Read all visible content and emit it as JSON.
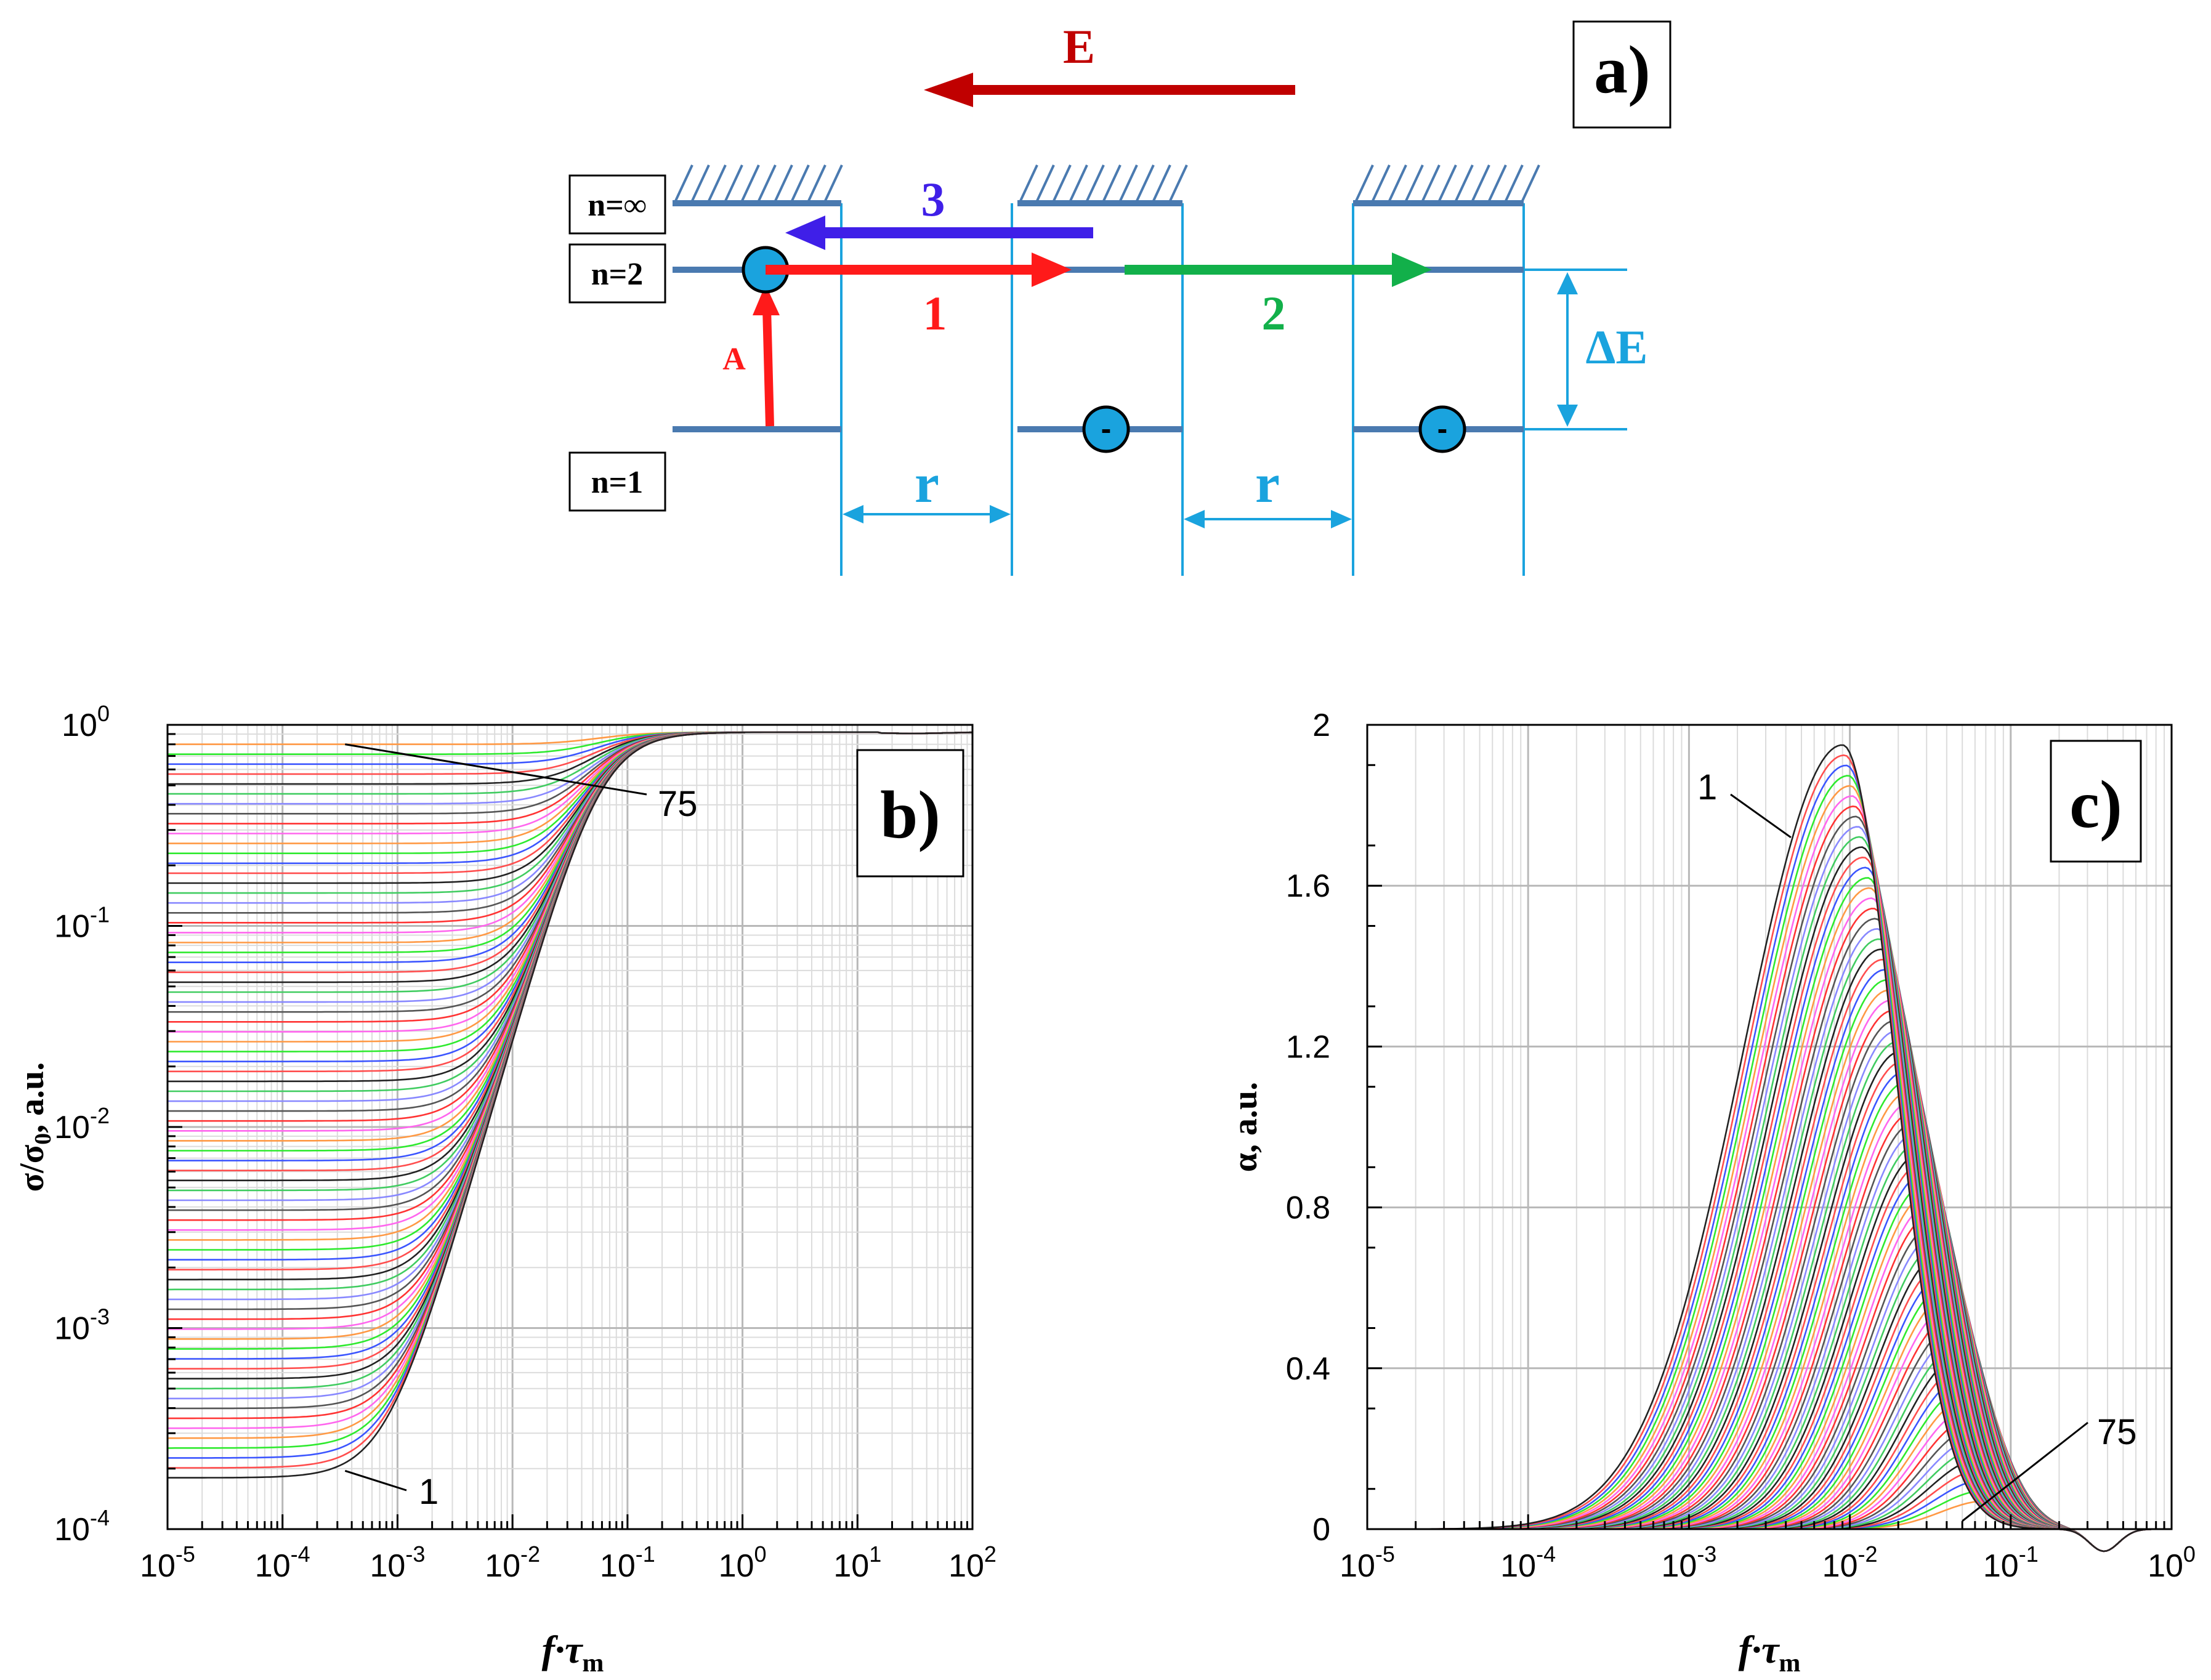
{
  "panel_a": {
    "label": "a)",
    "field_label": "E",
    "levels": [
      "n=∞",
      "n=2",
      "n=1"
    ],
    "transitions": {
      "absorption": "A",
      "hop_near": "1",
      "hop_far": "2",
      "ionization": "3"
    },
    "energy_gap": "ΔE",
    "distance": "r",
    "electron_mark": "-",
    "colors": {
      "field": "#c00000",
      "level": "#4a7ab0",
      "cyan": "#1aa3de",
      "red": "#ff1a1a",
      "green": "#12b04a",
      "blue": "#3f1fe8"
    }
  },
  "chart_data": [
    {
      "id": "b",
      "type": "line",
      "label": "b)",
      "xlabel_main": "f·τ",
      "xlabel_sub": "m",
      "ylabel_main": "σ/σ",
      "ylabel_sub": "0",
      "ylabel_tail": ", a.u.",
      "xscale": "log",
      "yscale": "log",
      "xlim": [
        1e-05,
        100
      ],
      "ylim": [
        0.0001,
        1
      ],
      "x_tick_exponents": [
        "-5",
        "-4",
        "-3",
        "-2",
        "-1",
        "0",
        "1",
        "2"
      ],
      "y_tick_exponents": [
        "-4",
        "-3",
        "-2",
        "-1",
        "0"
      ],
      "tick_base": "10",
      "curve_count": 75,
      "first_curve_plateau": 0.00018,
      "last_curve_plateau": 0.8,
      "saturation_value": 0.92,
      "annotations": [
        {
          "text": "1",
          "x": 0.0012,
          "y": 0.00018
        },
        {
          "text": "75",
          "x": 0.00035,
          "y": 0.8
        }
      ],
      "grid": true
    },
    {
      "id": "c",
      "type": "line",
      "label": "c)",
      "xlabel_main": "f·τ",
      "xlabel_sub": "m",
      "ylabel_main": "α, a.u.",
      "xscale": "log",
      "yscale": "linear",
      "xlim": [
        1e-05,
        1
      ],
      "ylim": [
        0,
        2
      ],
      "x_tick_exponents": [
        "-5",
        "-4",
        "-3",
        "-2",
        "-1",
        "0"
      ],
      "y_ticks": [
        "0",
        "0.4",
        "0.8",
        "1.2",
        "1.6",
        "2"
      ],
      "tick_base": "10",
      "curve_count": 75,
      "first_curve_peak": {
        "x": 0.009,
        "y": 1.95
      },
      "last_curve_peak": {
        "x": 0.07,
        "y": 0.07
      },
      "zero_crossing": 0.25,
      "annotations": [
        {
          "text": "1",
          "x": 0.0035,
          "y": 1.8
        },
        {
          "text": "75",
          "x": 0.05,
          "y": 0.0
        }
      ],
      "grid": true
    }
  ],
  "series_palette": [
    "#222222",
    "#ff4d4d",
    "#3b55ff",
    "#2eea2e",
    "#ff9944",
    "#ff66ee",
    "#ff3333",
    "#555555",
    "#8888ff",
    "#40cc60"
  ]
}
